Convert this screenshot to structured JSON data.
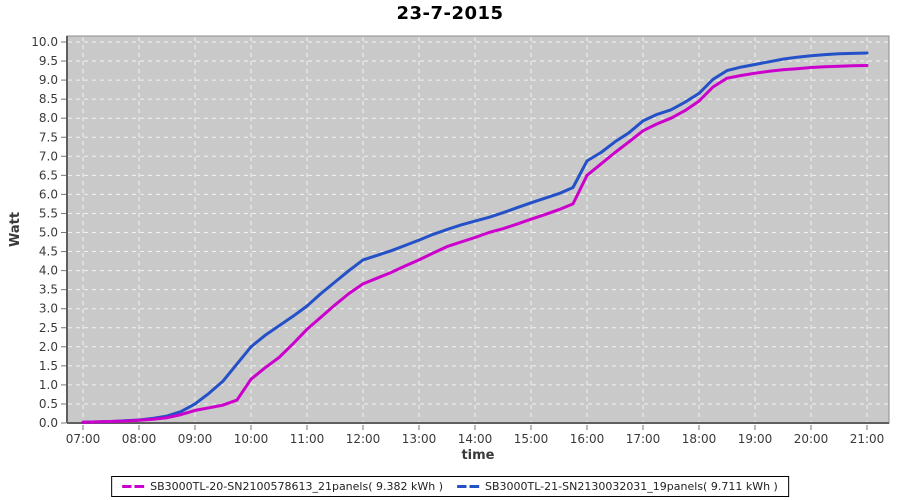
{
  "title": "23-7-2015",
  "axes": {
    "y_label": "Watt",
    "x_label": "time"
  },
  "legend": {
    "position": "bottom",
    "items": [
      {
        "label": "SB3000TL-20-SN2100578613_21panels( 9.382 kWh )",
        "color": "#cc00cc"
      },
      {
        "label": "SB3000TL-21-SN2130032031_19panels( 9.711 kWh )",
        "color": "#2450c8"
      }
    ]
  },
  "colors": {
    "plot_bg": "#c9c9c9",
    "grid": "#f2f2f2",
    "plot_border": "#8c8c8c",
    "axis_line": "#5f5f5f",
    "tick_mark": "#777777",
    "tick_text": "#3a3a3a"
  },
  "chart_data": {
    "type": "line",
    "title": "23-7-2015",
    "xlabel": "time",
    "ylabel": "Watt",
    "grid": true,
    "legend_position": "bottom",
    "xlim_hours": [
      7,
      21
    ],
    "ylim": [
      0,
      10
    ],
    "y_tick_step": 0.5,
    "y_ticks": [
      0.0,
      0.5,
      1.0,
      1.5,
      2.0,
      2.5,
      3.0,
      3.5,
      4.0,
      4.5,
      5.0,
      5.5,
      6.0,
      6.5,
      7.0,
      7.5,
      8.0,
      8.5,
      9.0,
      9.5,
      10.0
    ],
    "x_tick_hours": [
      7,
      8,
      9,
      10,
      11,
      12,
      13,
      14,
      15,
      16,
      17,
      18,
      19,
      20,
      21
    ],
    "x_tick_labels": [
      "07:00",
      "08:00",
      "09:00",
      "10:00",
      "11:00",
      "12:00",
      "13:00",
      "14:00",
      "15:00",
      "16:00",
      "17:00",
      "18:00",
      "19:00",
      "20:00",
      "21:00"
    ],
    "x": [
      7.0,
      7.25,
      7.5,
      7.75,
      8.0,
      8.25,
      8.5,
      8.75,
      9.0,
      9.25,
      9.5,
      9.75,
      10.0,
      10.25,
      10.5,
      10.75,
      11.0,
      11.25,
      11.5,
      11.75,
      12.0,
      12.25,
      12.5,
      12.75,
      13.0,
      13.25,
      13.5,
      13.75,
      14.0,
      14.25,
      14.5,
      14.75,
      15.0,
      15.25,
      15.5,
      15.75,
      16.0,
      16.25,
      16.5,
      16.75,
      17.0,
      17.25,
      17.5,
      17.75,
      18.0,
      18.25,
      18.5,
      18.75,
      19.0,
      19.25,
      19.5,
      19.75,
      20.0,
      20.25,
      20.5,
      20.75,
      21.0
    ],
    "series": [
      {
        "name": "SB3000TL-20-SN2100578613_21panels( 9.382 kWh )",
        "total_kwh": 9.382,
        "color": "#cc00cc",
        "values": [
          0.02,
          0.03,
          0.04,
          0.05,
          0.07,
          0.1,
          0.14,
          0.22,
          0.33,
          0.4,
          0.47,
          0.6,
          1.15,
          1.45,
          1.72,
          2.08,
          2.46,
          2.78,
          3.1,
          3.4,
          3.65,
          3.8,
          3.95,
          4.12,
          4.28,
          4.46,
          4.63,
          4.75,
          4.87,
          5.0,
          5.1,
          5.22,
          5.35,
          5.47,
          5.6,
          5.75,
          6.5,
          6.8,
          7.1,
          7.38,
          7.67,
          7.85,
          8.0,
          8.2,
          8.45,
          8.82,
          9.05,
          9.12,
          9.18,
          9.23,
          9.27,
          9.3,
          9.33,
          9.35,
          9.365,
          9.375,
          9.382
        ]
      },
      {
        "name": "SB3000TL-21-SN2130032031_19panels( 9.711 kWh )",
        "total_kwh": 9.711,
        "color": "#2450c8",
        "values": [
          0.02,
          0.03,
          0.04,
          0.06,
          0.08,
          0.12,
          0.18,
          0.3,
          0.5,
          0.78,
          1.1,
          1.55,
          2.0,
          2.3,
          2.55,
          2.8,
          3.07,
          3.4,
          3.7,
          4.0,
          4.28,
          4.4,
          4.52,
          4.66,
          4.8,
          4.95,
          5.08,
          5.2,
          5.3,
          5.4,
          5.52,
          5.65,
          5.78,
          5.9,
          6.02,
          6.18,
          6.88,
          7.1,
          7.38,
          7.62,
          7.93,
          8.1,
          8.22,
          8.42,
          8.65,
          9.02,
          9.25,
          9.34,
          9.41,
          9.48,
          9.55,
          9.6,
          9.64,
          9.67,
          9.69,
          9.7,
          9.71
        ]
      }
    ]
  }
}
